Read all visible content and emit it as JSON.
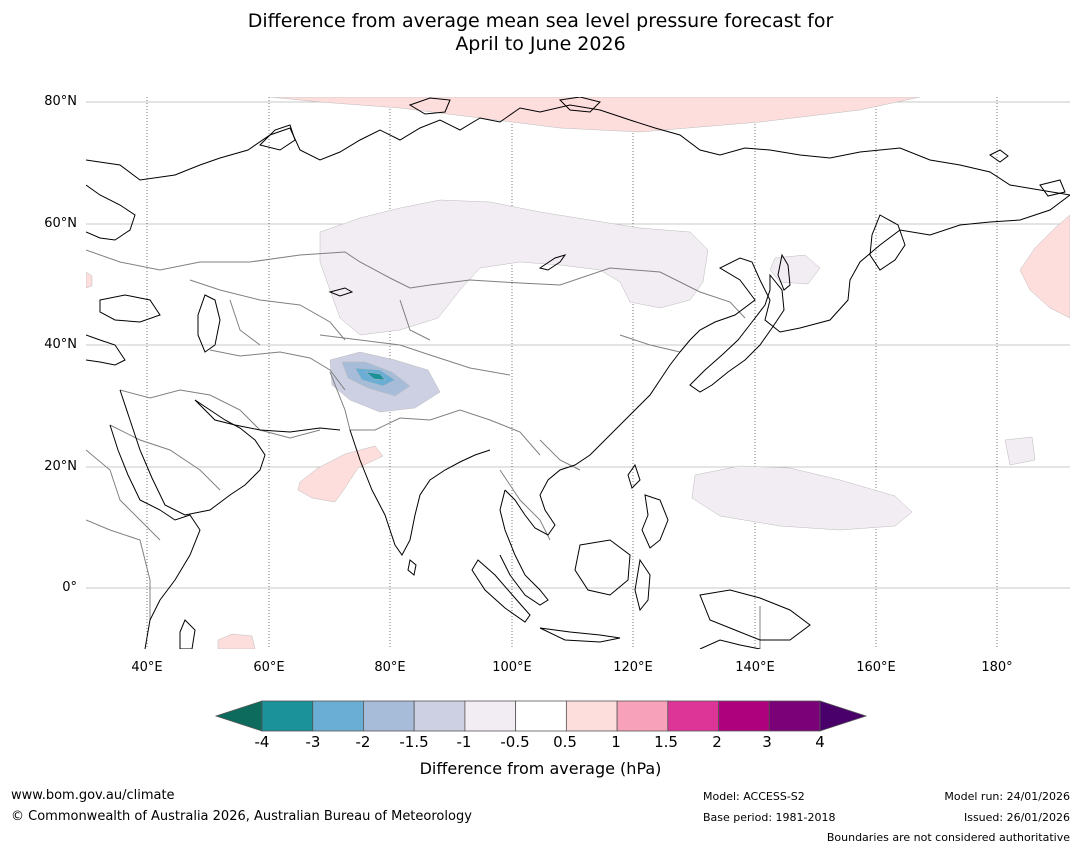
{
  "title": {
    "line1": "Difference from average mean sea level pressure forecast for",
    "line2": "April to June 2026"
  },
  "axes": {
    "lat_labels": [
      "80°N",
      "60°N",
      "40°N",
      "20°N",
      "0°"
    ],
    "lon_labels": [
      "40°E",
      "60°E",
      "80°E",
      "100°E",
      "120°E",
      "140°E",
      "160°E",
      "180°"
    ]
  },
  "colorbar": {
    "title": "Difference from average (hPa)",
    "tick_labels": [
      "-4",
      "-3",
      "-2",
      "-1.5",
      "-1",
      "-0.5",
      "0.5",
      "1",
      "1.5",
      "2",
      "3",
      "4"
    ],
    "colors": [
      "#0d6b5e",
      "#1b9199",
      "#6aaed6",
      "#a7bcd8",
      "#cdd0e3",
      "#f2ecf3",
      "#ffffff",
      "#fddedd",
      "#f7a1ba",
      "#dd3497",
      "#ae017e",
      "#7a0177",
      "#49006a"
    ]
  },
  "footer": {
    "website": "www.bom.gov.au/climate",
    "copyright": "© Commonwealth of Australia 2026, Australian Bureau of Meteorology",
    "model": "Model: ACCESS-S2",
    "base_period": "Base period: 1981-2018",
    "model_run": "Model run: 24/01/2026",
    "issued": "Issued: 26/01/2026",
    "disclaimer": "Boundaries are not considered authoritative"
  }
}
